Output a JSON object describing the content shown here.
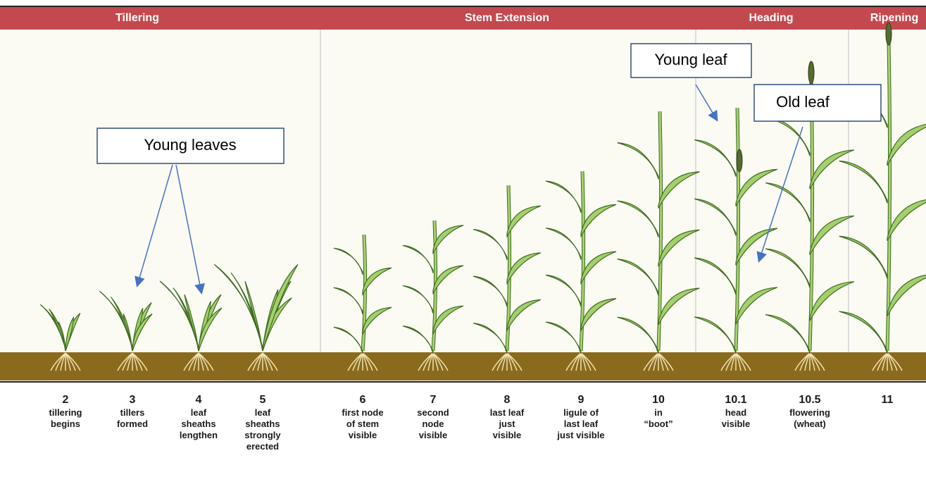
{
  "phases": [
    "Tillering",
    "Stem Extension",
    "Heading",
    "Ripening"
  ],
  "stages": [
    {
      "number": "2",
      "lines": [
        "tillering",
        "begins"
      ]
    },
    {
      "number": "3",
      "lines": [
        "tillers",
        "formed"
      ]
    },
    {
      "number": "4",
      "lines": [
        "leaf",
        "sheaths",
        "lengthen"
      ]
    },
    {
      "number": "5",
      "lines": [
        "leaf",
        "sheaths",
        "strongly",
        "erected"
      ]
    },
    {
      "number": "6",
      "lines": [
        "first node",
        "of stem",
        "visible"
      ]
    },
    {
      "number": "7",
      "lines": [
        "second",
        "node",
        "visible"
      ]
    },
    {
      "number": "8",
      "lines": [
        "last leaf",
        "just",
        "visible"
      ]
    },
    {
      "number": "9",
      "lines": [
        "ligule of",
        "last leaf",
        "just visible"
      ]
    },
    {
      "number": "10",
      "lines": [
        "in",
        "“boot”"
      ]
    },
    {
      "number": "10.1",
      "lines": [
        "head",
        "visible"
      ]
    },
    {
      "number": "10.5",
      "lines": [
        "flowering",
        "(wheat)"
      ]
    },
    {
      "number": "11",
      "lines": []
    }
  ],
  "callouts": [
    "Young leaves",
    "Young leaf",
    "Old leaf"
  ]
}
